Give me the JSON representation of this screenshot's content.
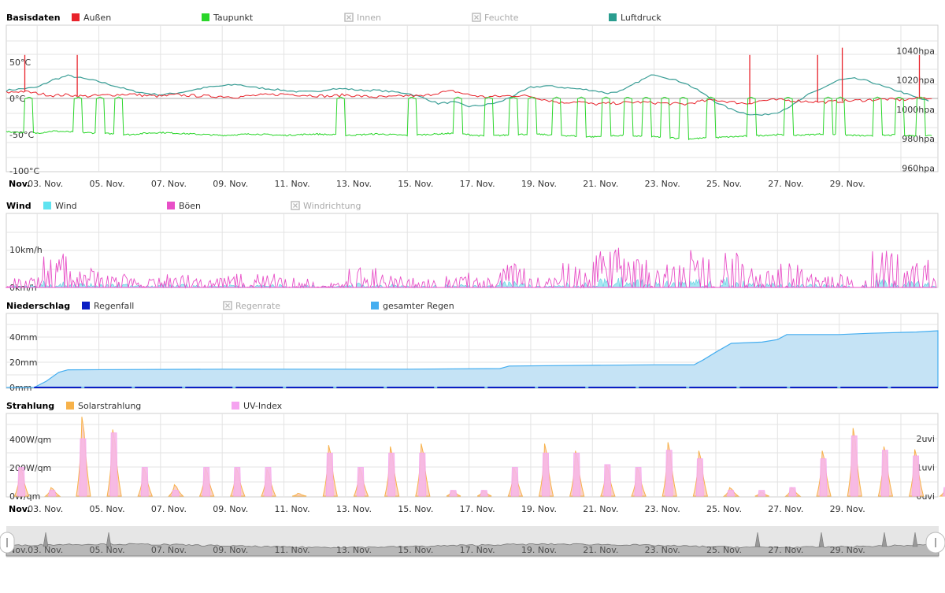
{
  "chart_data": [
    {
      "type": "line",
      "title": "Basisdaten",
      "legend": [
        {
          "name": "Außen",
          "color": "#e8232b",
          "visible": true
        },
        {
          "name": "Taupunkt",
          "color": "#2ad62a",
          "visible": true
        },
        {
          "name": "Innen",
          "color": "#bbbbbb",
          "visible": false
        },
        {
          "name": "Feuchte",
          "color": "#bbbbbb",
          "visible": false
        },
        {
          "name": "Luftdruck",
          "color": "#2a9d8f",
          "visible": true
        }
      ],
      "y_left": {
        "ticks": [
          "50°C",
          "0°C",
          "-50°C",
          "-100°C"
        ],
        "values": [
          50,
          0,
          -50,
          -100
        ],
        "ylim": [
          -100,
          100
        ]
      },
      "y_right": {
        "ticks": [
          "1040hpa",
          "1020hpa",
          "1000hpa",
          "980hpa",
          "960hpa"
        ],
        "values": [
          1040,
          1020,
          1000,
          980,
          960
        ],
        "ylim": [
          960,
          1060
        ]
      },
      "x_labels": [
        "Nov.",
        "03. Nov.",
        "05. Nov.",
        "07. Nov.",
        "09. Nov.",
        "11. Nov.",
        "13. Nov.",
        "15. Nov.",
        "17. Nov.",
        "19. Nov.",
        "21. Nov.",
        "23. Nov.",
        "25. Nov.",
        "27. Nov.",
        "29. Nov."
      ],
      "xlim_days": [
        1,
        31.2
      ],
      "series": [
        {
          "name": "Außen",
          "unit": "°C",
          "x": [
            1,
            1.5,
            2,
            2.5,
            3,
            3.5,
            4,
            4.5,
            5,
            5.5,
            6,
            6.5,
            7,
            7.5,
            8,
            8.5,
            9,
            9.5,
            10,
            10.5,
            11,
            11.5,
            12,
            12.5,
            13,
            13.5,
            14,
            14.5,
            15,
            15.5,
            16,
            16.5,
            17,
            17.5,
            18,
            18.5,
            19,
            19.5,
            20,
            20.5,
            21,
            21.5,
            22,
            22.5,
            23,
            23.5,
            24,
            24.5,
            25,
            25.5,
            26,
            26.5,
            27,
            27.5,
            28,
            28.5,
            29,
            29.5,
            30,
            30.5,
            31
          ],
          "values": [
            8,
            10,
            7,
            4,
            5,
            3,
            4,
            5,
            6,
            4,
            3,
            5,
            4,
            3,
            3,
            2,
            4,
            5,
            6,
            5,
            4,
            3,
            5,
            3,
            2,
            2,
            4,
            3,
            8,
            10,
            5,
            2,
            3,
            4,
            3,
            -2,
            -6,
            -4,
            -8,
            -7,
            -6,
            -5,
            -6,
            -7,
            -8,
            -4,
            -2,
            -5,
            -7,
            -3,
            -2,
            -3,
            -4,
            -5,
            -4,
            -3,
            -2,
            -1,
            -2,
            0,
            1
          ]
        },
        {
          "name": "Taupunkt",
          "unit": "°C",
          "x": [
            1,
            1.5,
            2,
            2.5,
            3,
            3.5,
            4,
            4.5,
            5,
            5.5,
            6,
            6.5,
            7,
            7.5,
            8,
            8.5,
            9,
            9.5,
            10,
            10.5,
            11,
            11.5,
            12,
            12.5,
            13,
            13.5,
            14,
            14.5,
            15,
            15.5,
            16,
            16.5,
            17,
            17.5,
            18,
            18.5,
            19,
            19.5,
            20,
            20.5,
            21,
            21.5,
            22,
            22.5,
            23,
            23.5,
            24,
            24.5,
            25,
            25.5,
            26,
            26.5,
            27,
            27.5,
            28,
            28.5,
            29,
            29.5,
            30,
            30.5,
            31
          ],
          "values": [
            -46,
            -47,
            -48,
            -45,
            -46,
            -47,
            -48,
            -49,
            -50,
            -48,
            -47,
            -48,
            -49,
            -50,
            -51,
            -50,
            -49,
            -50,
            -51,
            -50,
            -49,
            -50,
            -51,
            -50,
            -49,
            -50,
            -51,
            -50,
            -49,
            -48,
            -50,
            -52,
            -51,
            -50,
            -49,
            -50,
            -51,
            -52,
            -53,
            -52,
            -51,
            -52,
            -53,
            -54,
            -56,
            -55,
            -54,
            -53,
            -52,
            -51,
            -50,
            -51,
            -50,
            -49,
            -50,
            -51,
            -52,
            -51,
            -50,
            -52,
            -51
          ]
        },
        {
          "name": "Luftdruck",
          "unit": "hpa",
          "x": [
            1,
            1.5,
            2,
            2.5,
            3,
            3.5,
            4,
            4.5,
            5,
            5.5,
            6,
            6.5,
            7,
            7.5,
            8,
            8.5,
            9,
            9.5,
            10,
            10.5,
            11,
            11.5,
            12,
            12.5,
            13,
            13.5,
            14,
            14.5,
            15,
            15.5,
            16,
            16.5,
            17,
            17.5,
            18,
            18.5,
            19,
            19.5,
            20,
            20.5,
            21,
            21.5,
            22,
            22.5,
            23,
            23.5,
            24,
            24.5,
            25,
            25.5,
            26,
            26.5,
            27,
            27.5,
            28,
            28.5,
            29,
            29.5,
            30,
            30.5,
            31
          ],
          "values": [
            1013,
            1014,
            1015,
            1020,
            1023,
            1021,
            1019,
            1016,
            1013,
            1011,
            1010,
            1011,
            1013,
            1015,
            1016,
            1017,
            1015,
            1014,
            1013,
            1012,
            1012,
            1014,
            1014,
            1013,
            1013,
            1012,
            1011,
            1008,
            1004,
            1005,
            1002,
            1003,
            1005,
            1010,
            1015,
            1016,
            1015,
            1014,
            1013,
            1011,
            1013,
            1019,
            1024,
            1021,
            1018,
            1012,
            1005,
            1000,
            997,
            996,
            998,
            1003,
            1010,
            1015,
            1020,
            1021,
            1019,
            1015,
            1012,
            1008,
            1005
          ]
        }
      ]
    },
    {
      "type": "area",
      "title": "Wind",
      "legend": [
        {
          "name": "Wind",
          "color": "#5ee3f0",
          "visible": true
        },
        {
          "name": "Böen",
          "color": "#e84fc7",
          "visible": true
        },
        {
          "name": "Windrichtung",
          "color": "#bbbbbb",
          "visible": false
        }
      ],
      "y_left": {
        "ticks": [
          "10km/h",
          "0km/h"
        ],
        "values": [
          10,
          0
        ],
        "ylim": [
          0,
          20
        ]
      },
      "xlim_days": [
        1,
        31.2
      ],
      "gust_level_by_day": [
        2,
        7,
        4,
        3,
        2,
        3,
        2,
        3,
        3,
        2,
        1,
        4,
        3,
        2,
        3,
        2,
        5,
        2,
        5,
        9,
        6,
        5,
        8,
        9,
        4,
        5,
        3,
        3,
        8,
        6,
        3
      ],
      "wind_level_by_day": [
        0.5,
        1.5,
        1,
        0.8,
        0.5,
        0.8,
        0.5,
        0.6,
        0.7,
        0.5,
        0.3,
        1,
        0.8,
        0.5,
        0.7,
        0.5,
        1.5,
        0.5,
        1.2,
        2.5,
        1.8,
        1.5,
        2,
        2.5,
        1,
        1.5,
        0.8,
        0.8,
        2,
        1.5,
        0.8
      ]
    },
    {
      "type": "area",
      "title": "Niederschlag",
      "legend": [
        {
          "name": "Regenfall",
          "color": "#0a1fc4",
          "visible": true
        },
        {
          "name": "Regenrate",
          "color": "#bbbbbb",
          "visible": false
        },
        {
          "name": "gesamter Regen",
          "color": "#45aef0",
          "visible": true
        }
      ],
      "y_left": {
        "ticks": [
          "40mm",
          "20mm",
          "0mm"
        ],
        "values": [
          40,
          20,
          0
        ],
        "ylim": [
          0,
          60
        ]
      },
      "xlim_days": [
        1,
        31.2
      ],
      "series": [
        {
          "name": "gesamter Regen",
          "unit": "mm",
          "x": [
            1,
            1.9,
            2.3,
            2.7,
            3,
            8,
            14,
            17,
            17.3,
            22,
            23.3,
            23.6,
            24,
            24.5,
            25.5,
            26,
            26.3,
            28,
            29,
            30.5,
            31.2
          ],
          "values": [
            0,
            0,
            5,
            12,
            14,
            14.5,
            14.5,
            15,
            17,
            18,
            18,
            22,
            28,
            35,
            36,
            38,
            42,
            42,
            43,
            44,
            45
          ]
        }
      ]
    },
    {
      "type": "area",
      "title": "Strahlung",
      "legend": [
        {
          "name": "Solarstrahlung",
          "color": "#f7b24a",
          "visible": true
        },
        {
          "name": "UV-Index",
          "color": "#f5a3f0",
          "visible": true
        }
      ],
      "y_left": {
        "ticks": [
          "400W/qm",
          "200W/qm",
          "0W/qm"
        ],
        "values": [
          400,
          200,
          0
        ],
        "ylim": [
          0,
          600
        ]
      },
      "y_right": {
        "ticks": [
          "2uvi",
          "1uvi",
          "0uvi"
        ],
        "values": [
          2,
          1,
          0
        ],
        "ylim": [
          0,
          3
        ]
      },
      "x_labels": [
        "Nov.",
        "03. Nov.",
        "05. Nov.",
        "07. Nov.",
        "09. Nov.",
        "11. Nov.",
        "13. Nov.",
        "15. Nov.",
        "17. Nov.",
        "19. Nov.",
        "21. Nov.",
        "23. Nov.",
        "25. Nov.",
        "27. Nov.",
        "29. Nov."
      ],
      "xlim_days": [
        1,
        31.2
      ],
      "series": [
        {
          "name": "Solarstrahlung",
          "unit": "W/qm",
          "x": [
            1,
            2,
            3,
            4,
            5,
            6,
            7,
            8,
            9,
            10,
            11,
            12,
            13,
            14,
            15,
            16,
            17,
            18,
            19,
            20,
            21,
            22,
            23,
            24,
            25,
            26,
            27,
            28,
            29,
            30,
            31
          ],
          "values": [
            200,
            60,
            560,
            470,
            200,
            80,
            200,
            200,
            190,
            20,
            360,
            200,
            350,
            370,
            40,
            40,
            200,
            370,
            320,
            220,
            200,
            380,
            320,
            60,
            30,
            60,
            320,
            480,
            350,
            330,
            60
          ]
        },
        {
          "name": "UV-Index",
          "unit": "uvi",
          "x": [
            1,
            2,
            3,
            4,
            5,
            6,
            7,
            8,
            9,
            10,
            11,
            12,
            13,
            14,
            15,
            16,
            17,
            18,
            19,
            20,
            21,
            22,
            23,
            24,
            25,
            26,
            27,
            28,
            29,
            30,
            31
          ],
          "values": [
            1,
            0.2,
            2,
            2.2,
            1,
            0.2,
            1,
            1,
            1,
            0,
            1.5,
            1,
            1.5,
            1.5,
            0.2,
            0.2,
            1,
            1.5,
            1.5,
            1.1,
            1,
            1.6,
            1.3,
            0.2,
            0.2,
            0.3,
            1.3,
            2.1,
            1.6,
            1.4,
            0.3
          ]
        }
      ]
    }
  ],
  "navigator": {
    "labels": [
      "Nov.",
      "03. Nov.",
      "05. Nov.",
      "07. Nov.",
      "09. Nov.",
      "11. Nov.",
      "13. Nov.",
      "15. Nov.",
      "17. Nov.",
      "19. Nov.",
      "21. Nov.",
      "23. Nov.",
      "25. Nov.",
      "27. Nov.",
      "29. Nov."
    ]
  },
  "colors": {
    "grid": "#e3e3e3",
    "axis": "#cccccc",
    "navigator_bg": "#e6e6e6",
    "navigator_line": "#777777"
  }
}
